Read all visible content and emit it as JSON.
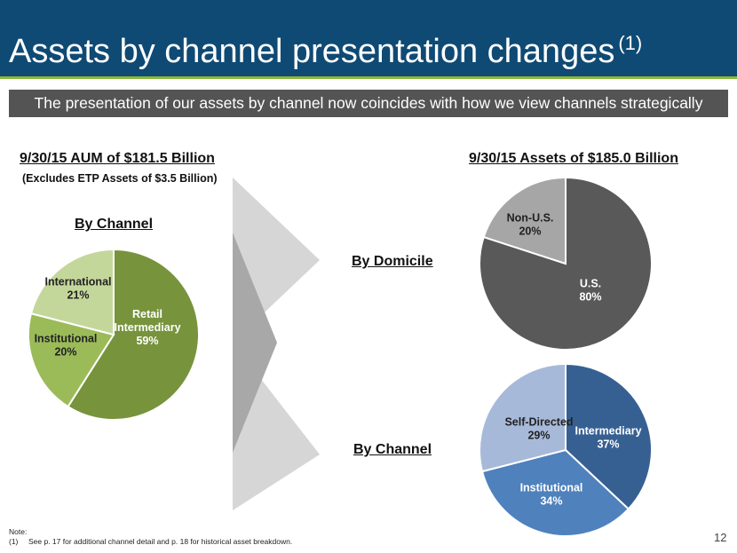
{
  "header": {
    "title": "Assets by channel presentation changes",
    "title_sup": "(1)"
  },
  "banner": {
    "text": "The presentation of our assets by channel now coincides with how we view channels strategically"
  },
  "left": {
    "total_heading": "9/30/15 AUM of $181.5 Billion",
    "exclusion_note": "(Excludes ETP Assets of $3.5 Billion)",
    "chart_heading": "By Channel"
  },
  "right": {
    "total_heading": "9/30/15 Assets of $185.0 Billion",
    "domicile_heading": "By Domicile",
    "channel_heading": "By Channel"
  },
  "footnote": {
    "note_label": "Note:",
    "num": "(1)",
    "text": "See p. 17 for additional channel detail and p. 18 for historical asset breakdown."
  },
  "page_number": "12",
  "colors": {
    "header_bg": "#0f4a74",
    "accent_line": "#8bb63a",
    "banner_bg": "#545454"
  },
  "chart_data": [
    {
      "type": "pie",
      "title": "By Channel",
      "slices": [
        {
          "label": "Retail Intermediary",
          "value": 59,
          "display": "59%",
          "color": "#77933c"
        },
        {
          "label": "Institutional",
          "value": 20,
          "display": "20%",
          "color": "#9bbb59"
        },
        {
          "label": "International",
          "value": 21,
          "display": "21%",
          "color": "#c4d79b"
        }
      ]
    },
    {
      "type": "pie",
      "title": "By Domicile",
      "slices": [
        {
          "label": "U.S.",
          "value": 80,
          "display": "80%",
          "color": "#595959"
        },
        {
          "label": "Non-U.S.",
          "value": 20,
          "display": "20%",
          "color": "#a6a6a6"
        }
      ]
    },
    {
      "type": "pie",
      "title": "By Channel",
      "slices": [
        {
          "label": "Intermediary",
          "value": 37,
          "display": "37%",
          "color": "#376092"
        },
        {
          "label": "Institutional",
          "value": 34,
          "display": "34%",
          "color": "#4f81bd"
        },
        {
          "label": "Self-Directed",
          "value": 29,
          "display": "29%",
          "color": "#a7b9d9"
        }
      ]
    }
  ]
}
